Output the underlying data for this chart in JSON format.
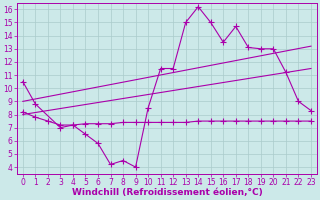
{
  "background_color": "#cce9e9",
  "line_color": "#aa00aa",
  "grid_color": "#aacccc",
  "xlabel": "Windchill (Refroidissement éolien,°C)",
  "xlabel_fontsize": 6.5,
  "tick_fontsize": 5.5,
  "xlim": [
    -0.5,
    23.5
  ],
  "ylim": [
    3.5,
    16.5
  ],
  "xticks": [
    0,
    1,
    2,
    3,
    4,
    5,
    6,
    7,
    8,
    9,
    10,
    11,
    12,
    13,
    14,
    15,
    16,
    17,
    18,
    19,
    20,
    21,
    22,
    23
  ],
  "yticks": [
    4,
    5,
    6,
    7,
    8,
    9,
    10,
    11,
    12,
    13,
    14,
    15,
    16
  ],
  "zigzag_x": [
    0,
    1,
    3,
    4,
    5,
    6,
    7,
    8,
    9,
    10,
    11,
    12,
    13,
    14,
    15,
    16,
    17,
    18,
    19,
    20,
    21,
    22,
    23
  ],
  "zigzag_y": [
    10.5,
    8.8,
    7.0,
    7.2,
    6.5,
    5.8,
    4.2,
    4.5,
    4.0,
    8.5,
    11.5,
    11.5,
    15.0,
    16.2,
    15.0,
    13.5,
    14.7,
    13.1,
    13.0,
    13.0,
    11.2,
    9.0,
    8.3
  ],
  "flat_x": [
    0,
    1,
    2,
    3,
    4,
    5,
    6,
    7,
    8,
    9,
    10,
    11,
    12,
    13,
    14,
    15,
    16,
    17,
    18,
    19,
    20,
    21,
    22,
    23
  ],
  "flat_y": [
    8.2,
    7.8,
    7.5,
    7.2,
    7.2,
    7.3,
    7.3,
    7.3,
    7.4,
    7.4,
    7.4,
    7.4,
    7.4,
    7.4,
    7.5,
    7.5,
    7.5,
    7.5,
    7.5,
    7.5,
    7.5,
    7.5,
    7.5,
    7.5
  ],
  "line1_x": [
    0,
    23
  ],
  "line1_y": [
    9.0,
    13.2
  ],
  "line2_x": [
    0,
    23
  ],
  "line2_y": [
    8.0,
    11.5
  ]
}
